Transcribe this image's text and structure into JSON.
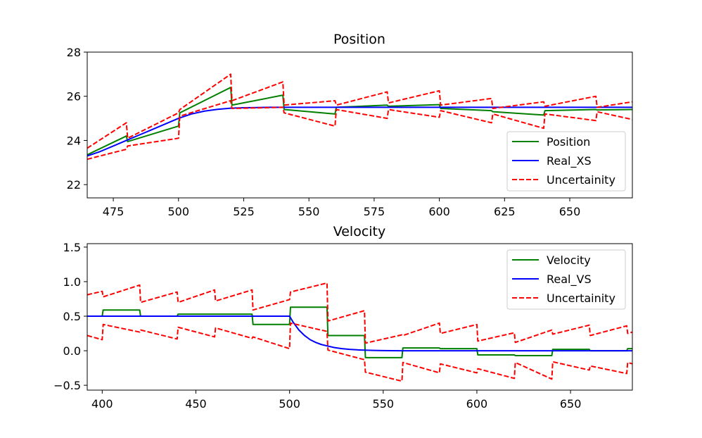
{
  "chart_data": [
    {
      "type": "line",
      "title": "Position",
      "xlim": [
        465,
        674
      ],
      "ylim": [
        21.4,
        28.0
      ],
      "xticks": [
        475,
        500,
        525,
        550,
        575,
        600,
        625,
        650
      ],
      "yticks": [
        22,
        24,
        26,
        28
      ],
      "grid": false,
      "legend_position": "lower-right",
      "series": [
        {
          "name": "Position",
          "color": "#008000",
          "style": "solid",
          "x": [
            465,
            480,
            480.5,
            500,
            500.5,
            520,
            520.5,
            540,
            540.5,
            560,
            560.5,
            580,
            580.5,
            600,
            600.5,
            620,
            620.5,
            640,
            640.5,
            660,
            660.5,
            674
          ],
          "y": [
            23.35,
            24.2,
            23.95,
            24.65,
            25.25,
            26.4,
            25.6,
            26.05,
            25.4,
            25.2,
            25.5,
            25.6,
            25.55,
            25.62,
            25.45,
            25.35,
            25.3,
            25.15,
            25.35,
            25.4,
            25.38,
            25.4
          ]
        },
        {
          "name": "Real_XS",
          "color": "#0000ff",
          "style": "solid",
          "x": [
            465,
            470,
            475,
            480,
            485,
            490,
            495,
            500,
            505,
            510,
            515,
            520,
            525,
            530,
            535,
            540,
            550,
            575,
            600,
            625,
            650,
            674
          ],
          "y": [
            23.3,
            23.5,
            23.75,
            24.0,
            24.25,
            24.5,
            24.75,
            25.0,
            25.2,
            25.33,
            25.41,
            25.46,
            25.48,
            25.49,
            25.5,
            25.5,
            25.5,
            25.5,
            25.5,
            25.5,
            25.5,
            25.5
          ]
        },
        {
          "name": "Uncertainity",
          "color": "#ff0000",
          "style": "dashed",
          "x": [
            465,
            480,
            480.5,
            500,
            500.5,
            520,
            520.5,
            540,
            540.5,
            560,
            560.5,
            580,
            580.5,
            600,
            600.5,
            620,
            620.5,
            640,
            640.5,
            660,
            660.5,
            674
          ],
          "y": [
            23.65,
            24.8,
            24.1,
            25.25,
            25.4,
            27.0,
            25.8,
            26.65,
            25.6,
            25.8,
            25.6,
            26.2,
            25.7,
            26.25,
            25.6,
            25.9,
            25.45,
            25.75,
            25.55,
            26.0,
            25.5,
            25.75
          ]
        },
        {
          "color": "#ff0000",
          "style": "dashed",
          "x": [
            465,
            480,
            480.5,
            500,
            500.5,
            520,
            520.5,
            540,
            540.5,
            560,
            560.5,
            580,
            580.5,
            600,
            600.5,
            620,
            620.5,
            640,
            640.5,
            660,
            660.5,
            674
          ],
          "y": [
            23.15,
            23.6,
            23.75,
            24.1,
            25.1,
            25.8,
            25.45,
            25.5,
            25.25,
            24.65,
            25.4,
            25.0,
            25.4,
            25.05,
            25.35,
            24.8,
            25.2,
            24.55,
            25.2,
            24.9,
            25.3,
            24.95
          ]
        }
      ]
    },
    {
      "type": "line",
      "title": "Velocity",
      "xlim": [
        392,
        683
      ],
      "ylim": [
        -0.57,
        1.55
      ],
      "xticks": [
        400,
        450,
        500,
        550,
        600,
        650
      ],
      "yticks": [
        -0.5,
        0.0,
        0.5,
        1.0,
        1.5
      ],
      "ytick_labels": [
        "−0.5",
        "0.0",
        "0.5",
        "1.0",
        "1.5"
      ],
      "grid": false,
      "legend_position": "upper-right",
      "series": [
        {
          "name": "Velocity",
          "color": "#008000",
          "style": "solid",
          "x": [
            392,
            400,
            400.5,
            420,
            420.5,
            440,
            440.5,
            460,
            460.5,
            480,
            480.5,
            500,
            500.5,
            520,
            520.5,
            540,
            540.5,
            560,
            560.5,
            580,
            580.5,
            600,
            600.5,
            620,
            620.5,
            640,
            640.5,
            660,
            660.5,
            680,
            680.5,
            683
          ],
          "y": [
            0.5,
            0.5,
            0.59,
            0.59,
            0.5,
            0.5,
            0.53,
            0.53,
            0.53,
            0.53,
            0.38,
            0.38,
            0.63,
            0.63,
            0.22,
            0.22,
            -0.1,
            -0.1,
            0.04,
            0.04,
            0.03,
            0.03,
            -0.06,
            -0.06,
            -0.07,
            -0.07,
            0.02,
            0.02,
            0.0,
            0.0,
            0.03,
            0.03
          ]
        },
        {
          "name": "Real_VS",
          "color": "#0000ff",
          "style": "solid",
          "x": [
            392,
            500,
            502,
            505,
            508,
            511,
            514,
            517,
            520,
            524,
            528,
            532,
            536,
            540,
            545,
            550,
            560,
            683
          ],
          "y": [
            0.5,
            0.5,
            0.41,
            0.3,
            0.22,
            0.16,
            0.12,
            0.09,
            0.07,
            0.045,
            0.03,
            0.02,
            0.013,
            0.008,
            0.004,
            0.002,
            0.0,
            0.0
          ]
        },
        {
          "name": "Uncertainity",
          "color": "#ff0000",
          "style": "dashed",
          "x": [
            392,
            400,
            400.5,
            420,
            420.5,
            440,
            440.5,
            460,
            460.5,
            480,
            480.5,
            500,
            500.5,
            520,
            520.5,
            540,
            540.5,
            560,
            560.5,
            580,
            580.5,
            600,
            600.5,
            620,
            620.5,
            640,
            640.5,
            660,
            660.5,
            680,
            680.5,
            683
          ],
          "y": [
            0.81,
            0.86,
            0.78,
            0.95,
            0.7,
            0.85,
            0.7,
            0.88,
            0.72,
            0.88,
            0.59,
            0.74,
            0.85,
            0.98,
            0.43,
            0.58,
            0.11,
            0.23,
            0.22,
            0.4,
            0.25,
            0.38,
            0.14,
            0.26,
            0.12,
            0.3,
            0.24,
            0.37,
            0.22,
            0.36,
            0.25,
            0.27
          ]
        },
        {
          "color": "#ff0000",
          "style": "dashed",
          "x": [
            392,
            400,
            400.5,
            420,
            420.5,
            440,
            440.5,
            460,
            460.5,
            480,
            480.5,
            500,
            500.5,
            520,
            520.5,
            540,
            540.5,
            560,
            560.5,
            580,
            580.5,
            600,
            600.5,
            620,
            620.5,
            640,
            640.5,
            660,
            660.5,
            680,
            680.5,
            683
          ],
          "y": [
            0.22,
            0.16,
            0.38,
            0.27,
            0.3,
            0.17,
            0.34,
            0.2,
            0.33,
            0.18,
            0.2,
            0.03,
            0.4,
            0.28,
            0.01,
            -0.13,
            -0.31,
            -0.44,
            -0.17,
            -0.32,
            -0.19,
            -0.32,
            -0.26,
            -0.4,
            -0.17,
            -0.41,
            -0.16,
            -0.28,
            -0.22,
            -0.33,
            -0.17,
            -0.19
          ]
        }
      ]
    }
  ]
}
